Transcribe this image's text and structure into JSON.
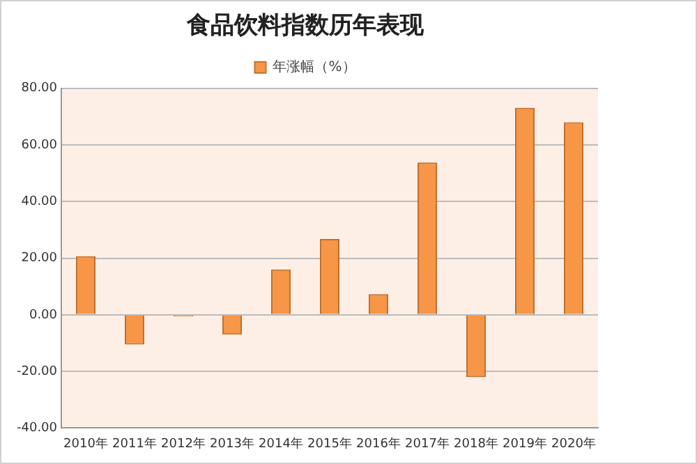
{
  "chart_data": {
    "type": "bar",
    "title": "食品饮料指数历年表现",
    "categories": [
      "2010年",
      "2011年",
      "2012年",
      "2013年",
      "2014年",
      "2015年",
      "2016年",
      "2017年",
      "2018年",
      "2019年",
      "2020年"
    ],
    "series": [
      {
        "name": "年涨幅（%）",
        "color": "#f79646",
        "values": [
          20.7,
          -10.5,
          -0.6,
          -7,
          16,
          26.8,
          7.3,
          53.8,
          -22,
          73.1,
          68
        ]
      }
    ],
    "ylim": [
      -40,
      80
    ],
    "yticks": [
      {
        "value": -40,
        "label": "-40.00"
      },
      {
        "value": -20,
        "label": "-20.00"
      },
      {
        "value": 0,
        "label": "0.00"
      },
      {
        "value": 20,
        "label": "20.00"
      },
      {
        "value": 40,
        "label": "40.00"
      },
      {
        "value": 60,
        "label": "60.00"
      },
      {
        "value": 80,
        "label": "80.00"
      }
    ],
    "grid": "y",
    "legend": "top"
  }
}
